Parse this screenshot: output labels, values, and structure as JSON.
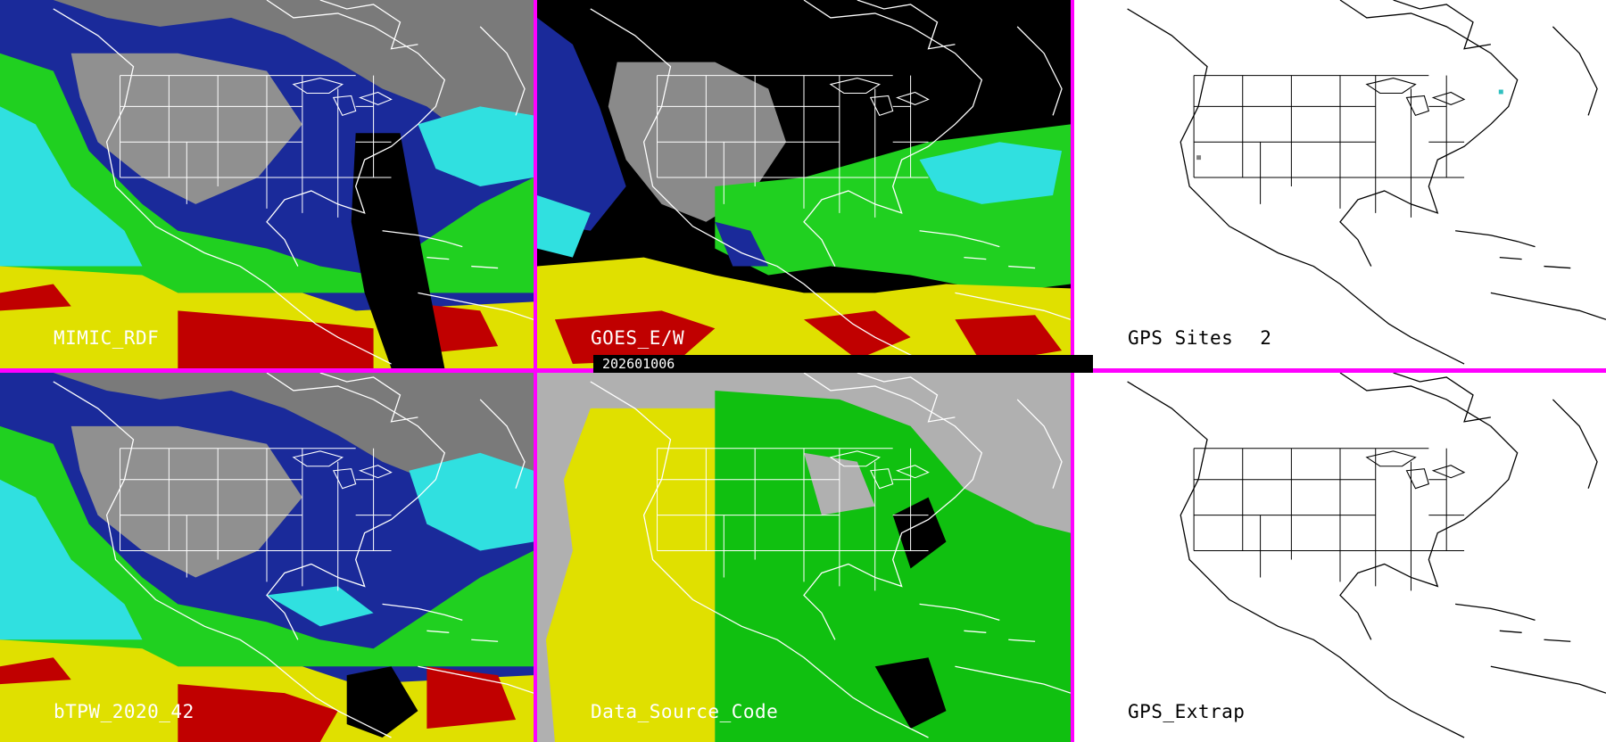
{
  "date_stamp": "202601006",
  "panels": {
    "mimic_rdf": {
      "label": "MIMIC_RDF"
    },
    "goes_ew": {
      "label": "GOES_E/W"
    },
    "gps_sites": {
      "label": "GPS Sites",
      "count": "2"
    },
    "btpw": {
      "label": "bTPW_2020_42"
    },
    "data_source": {
      "label": "Data_Source_Code"
    },
    "gps_extrap": {
      "label": "GPS_Extrap"
    }
  },
  "colors": {
    "separator": "#ff00ff",
    "moist_high": "#c00000",
    "moist_mid_high": "#e0e000",
    "moist_mid": "#20d020",
    "moist_low": "#30e0e0",
    "moist_lower": "#1030b0",
    "dry": "#909090",
    "source_gray": "#b0b0b0",
    "source_yellow": "#e0e000",
    "source_green": "#10c010"
  }
}
